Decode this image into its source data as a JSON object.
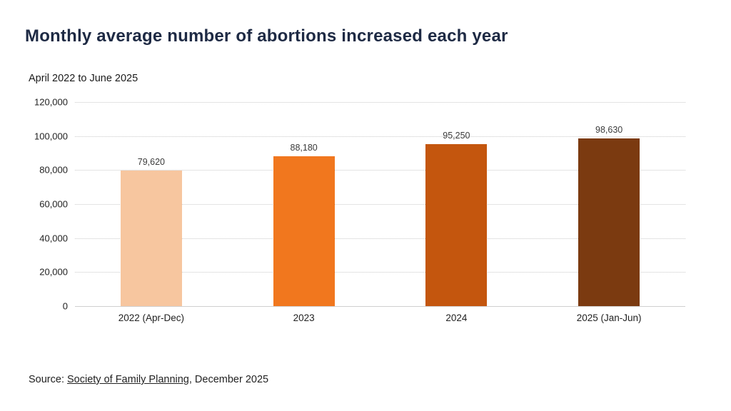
{
  "header": {
    "title": "Monthly average number of abortions increased each year",
    "subtitle": "April 2022 to June 2025"
  },
  "chart_data": {
    "type": "bar",
    "title": "Monthly average number of abortions increased each year",
    "subtitle": "April 2022 to June 2025",
    "categories": [
      "2022 (Apr-Dec)",
      "2023",
      "2024",
      "2025 (Jan-Jun)"
    ],
    "values": [
      79620,
      88180,
      95250,
      98630
    ],
    "value_labels": [
      "79,620",
      "88,180",
      "95,250",
      "98,630"
    ],
    "bar_colors": [
      "#F7C69F",
      "#F1771E",
      "#C4560E",
      "#7B3A10"
    ],
    "ylim": [
      0,
      120000
    ],
    "ytick_interval": 20000,
    "ytick_labels": [
      "0",
      "20,000",
      "40,000",
      "60,000",
      "80,000",
      "100,000",
      "120,000"
    ],
    "xlabel": "",
    "ylabel": "",
    "grid": "horizontal-dotted",
    "legend": "none"
  },
  "footer": {
    "source_prefix": "Source: ",
    "source_link": "Society of Family Planning",
    "source_suffix": ", December 2025"
  },
  "colors": {
    "title": "#1E2A44",
    "text": "#222222",
    "grid": "#c9c9c9",
    "axis_baseline": "#cfcfcf"
  }
}
